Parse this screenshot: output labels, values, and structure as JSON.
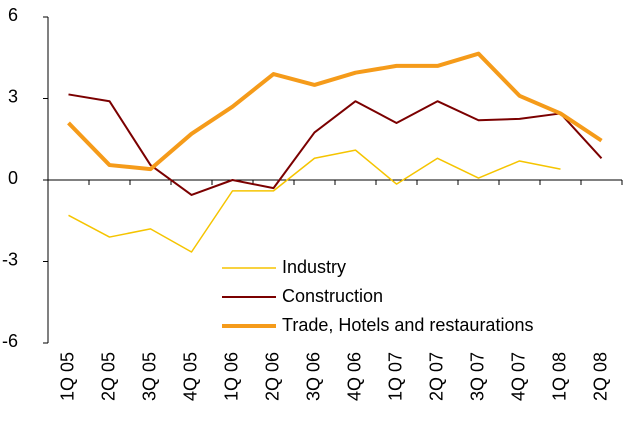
{
  "chart_data": {
    "type": "line",
    "categories": [
      "1Q 05",
      "2Q 05",
      "3Q 05",
      "4Q 05",
      "1Q 06",
      "2Q 06",
      "3Q 06",
      "4Q 06",
      "1Q 07",
      "2Q 07",
      "3Q 07",
      "4Q 07",
      "1Q 08",
      "2Q 08"
    ],
    "series": [
      {
        "name": "Industry",
        "color": "#f5c400",
        "width": 1.5,
        "values": [
          -1.3,
          -2.1,
          -1.8,
          -2.65,
          -0.4,
          -0.4,
          0.8,
          1.1,
          -0.15,
          0.8,
          0.07,
          0.7,
          0.4,
          null
        ]
      },
      {
        "name": "Construction",
        "color": "#7b0000",
        "width": 2,
        "values": [
          3.15,
          2.9,
          0.55,
          -0.55,
          0.0,
          -0.3,
          1.75,
          2.9,
          2.1,
          2.9,
          2.2,
          2.25,
          2.45,
          0.8
        ]
      },
      {
        "name": "Trade, Hotels and restaurations",
        "color": "#f59b1a",
        "width": 4,
        "values": [
          2.1,
          0.55,
          0.4,
          1.7,
          2.7,
          3.9,
          3.5,
          3.95,
          4.2,
          4.2,
          4.65,
          3.1,
          2.45,
          1.45
        ]
      }
    ],
    "ylim": [
      -6,
      6
    ],
    "yticks": [
      -6,
      -3,
      0,
      3,
      6
    ]
  }
}
